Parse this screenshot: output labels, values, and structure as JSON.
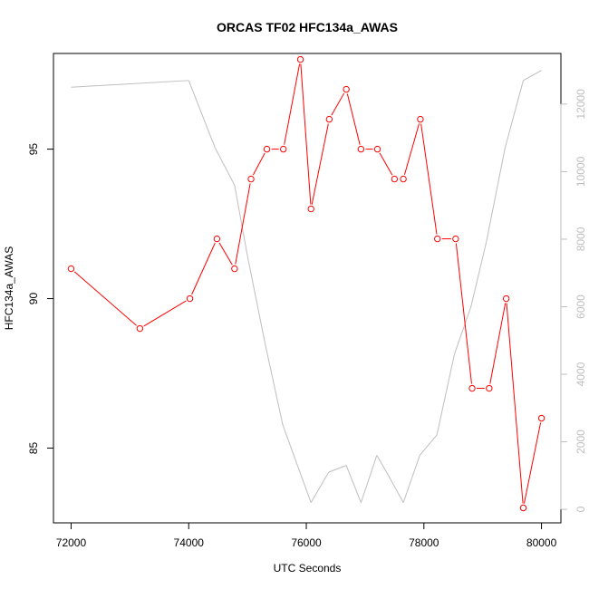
{
  "chart_data": {
    "type": "line",
    "title": "ORCAS TF02 HFC134a_AWAS",
    "xlabel": "UTC Seconds",
    "ylabel": "HFC134a_AWAS",
    "xlim": [
      71700,
      80330
    ],
    "ylim": [
      82.5,
      98.2
    ],
    "y2lim": [
      -400,
      13500
    ],
    "x_ticks": [
      72000,
      74000,
      76000,
      78000,
      80000
    ],
    "x_tick_labels": [
      "72000",
      "74000",
      "76000",
      "78000",
      "80000"
    ],
    "y_ticks": [
      85,
      90,
      95
    ],
    "y_tick_labels": [
      "85",
      "90",
      "95"
    ],
    "y2_ticks": [
      0,
      2000,
      4000,
      6000,
      8000,
      10000,
      12000
    ],
    "y2_tick_labels": [
      "0",
      "2000",
      "4000",
      "6000",
      "8000",
      "10000",
      "12000"
    ],
    "grid": false,
    "series": [
      {
        "axis": "left",
        "color": "#ff0000",
        "style": "line+open-circles",
        "x": [
          72000,
          73170,
          74020,
          74480,
          74780,
          75060,
          75330,
          75610,
          75900,
          76080,
          76390,
          76680,
          76930,
          77210,
          77500,
          77650,
          77940,
          78230,
          78540,
          78820,
          79110,
          79400,
          79690,
          80000
        ],
        "y": [
          91,
          89,
          90,
          92,
          91,
          94,
          95,
          95,
          98,
          93,
          96,
          97,
          95,
          95,
          94,
          94,
          96,
          92,
          92,
          87,
          87,
          90,
          83,
          86
        ]
      },
      {
        "axis": "right",
        "color": "#bebebe",
        "style": "line",
        "x": [
          72000,
          74000,
          74450,
          74780,
          75000,
          75300,
          75600,
          75850,
          76080,
          76380,
          76680,
          76930,
          77200,
          77430,
          77650,
          77930,
          78220,
          78520,
          78800,
          79060,
          79380,
          79690,
          80000
        ],
        "y": [
          12500,
          12700,
          10700,
          9600,
          7500,
          4900,
          2500,
          1300,
          200,
          1100,
          1300,
          200,
          1600,
          900,
          200,
          1600,
          2200,
          4600,
          6000,
          7900,
          10700,
          12700,
          13000
        ]
      }
    ]
  }
}
